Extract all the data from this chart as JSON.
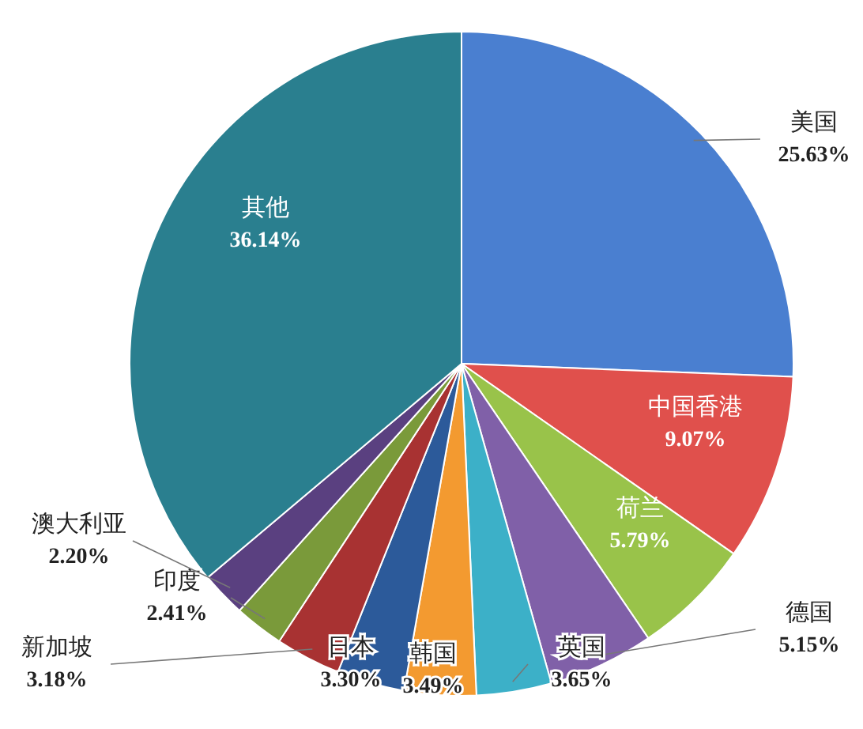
{
  "chart_data": {
    "type": "pie",
    "categories": [
      "美国",
      "中国香港",
      "荷兰",
      "德国",
      "英国",
      "韩国",
      "日本",
      "新加坡",
      "印度",
      "澳大利亚",
      "其他"
    ],
    "values": [
      25.63,
      9.07,
      5.79,
      5.15,
      3.65,
      3.49,
      3.3,
      3.18,
      2.41,
      2.2,
      36.14
    ],
    "value_labels": [
      "25.63%",
      "9.07%",
      "5.79%",
      "5.15%",
      "3.65%",
      "3.49%",
      "3.30%",
      "3.18%",
      "2.41%",
      "2.20%",
      "36.14%"
    ],
    "colors": [
      "#4a7fd0",
      "#e0504c",
      "#99c34a",
      "#8060a8",
      "#3cb0c8",
      "#f39a30",
      "#2c5a9a",
      "#a83232",
      "#7a9a3a",
      "#5a4080",
      "#2a7f8f"
    ]
  }
}
